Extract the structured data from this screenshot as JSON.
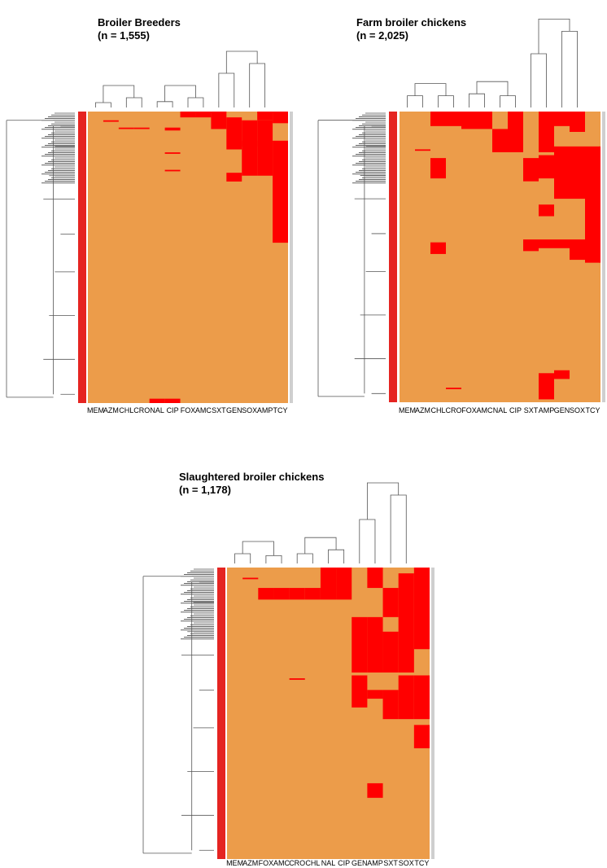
{
  "colors": {
    "susceptible": "#ec9c4a",
    "resistant": "#ff0000",
    "side_bar": "#e52421",
    "dendrogram": "#555555"
  },
  "chart_data": [
    {
      "type": "heatmap",
      "title": "Broiler Breeders",
      "subtitle": "(n = 1,555)",
      "columns": [
        "MEM",
        "AZM",
        "CHL",
        "CRO",
        "NAL",
        "CIP",
        "FOX",
        "AMC",
        "SXT",
        "GEN",
        "SOX",
        "AMP",
        "TCY"
      ],
      "value_encoding": {
        "0": "susceptible",
        "1": "resistant"
      },
      "resistant_blocks": [
        {
          "col": 12,
          "rows": [
            0.0,
            0.04
          ]
        },
        {
          "col": 12,
          "rows": [
            0.1,
            0.45
          ]
        },
        {
          "col": 11,
          "rows": [
            0.0,
            0.03
          ]
        },
        {
          "col": 11,
          "rows": [
            0.03,
            0.22
          ]
        },
        {
          "col": 10,
          "rows": [
            0.03,
            0.22
          ]
        },
        {
          "col": 10,
          "rows": [
            0.1,
            0.12
          ]
        },
        {
          "col": 9,
          "rows": [
            0.02,
            0.13
          ]
        },
        {
          "col": 9,
          "rows": [
            0.21,
            0.24
          ]
        },
        {
          "col": 8,
          "rows": [
            0.0,
            0.06
          ]
        },
        {
          "col": 7,
          "rows": [
            0.0,
            0.02
          ]
        },
        {
          "col": 6,
          "rows": [
            0.0,
            0.02
          ]
        },
        {
          "col": 5,
          "rows": [
            0.055,
            0.065
          ]
        },
        {
          "col": 5,
          "rows": [
            0.14,
            0.145
          ]
        },
        {
          "col": 5,
          "rows": [
            0.2,
            0.205
          ]
        },
        {
          "col": 3,
          "rows": [
            0.055,
            0.06
          ]
        },
        {
          "col": 2,
          "rows": [
            0.055,
            0.06
          ]
        },
        {
          "col": 1,
          "rows": [
            0.03,
            0.035
          ]
        },
        {
          "col": 4,
          "rows": [
            0.985,
            1.0
          ]
        },
        {
          "col": 5,
          "rows": [
            0.985,
            1.0
          ]
        }
      ]
    },
    {
      "type": "heatmap",
      "title": "Farm broiler chickens",
      "subtitle": "(n = 2,025)",
      "columns": [
        "MEM",
        "AZM",
        "CHL",
        "CRO",
        "FOX",
        "AMC",
        "NAL",
        "CIP",
        "SXT",
        "AMP",
        "GEN",
        "SOX",
        "TCY"
      ],
      "value_encoding": {
        "0": "susceptible",
        "1": "resistant"
      },
      "resistant_blocks": [
        {
          "col": 12,
          "rows": [
            0.12,
            0.52
          ]
        },
        {
          "col": 11,
          "rows": [
            0.0,
            0.07
          ]
        },
        {
          "col": 11,
          "rows": [
            0.12,
            0.3
          ]
        },
        {
          "col": 11,
          "rows": [
            0.44,
            0.51
          ]
        },
        {
          "col": 10,
          "rows": [
            0.0,
            0.05
          ]
        },
        {
          "col": 10,
          "rows": [
            0.12,
            0.3
          ]
        },
        {
          "col": 10,
          "rows": [
            0.44,
            0.47
          ]
        },
        {
          "col": 10,
          "rows": [
            0.89,
            0.92
          ]
        },
        {
          "col": 9,
          "rows": [
            0.0,
            0.14
          ]
        },
        {
          "col": 9,
          "rows": [
            0.15,
            0.23
          ]
        },
        {
          "col": 9,
          "rows": [
            0.32,
            0.36
          ]
        },
        {
          "col": 9,
          "rows": [
            0.44,
            0.47
          ]
        },
        {
          "col": 9,
          "rows": [
            0.9,
            0.99
          ]
        },
        {
          "col": 8,
          "rows": [
            0.16,
            0.24
          ]
        },
        {
          "col": 8,
          "rows": [
            0.44,
            0.48
          ]
        },
        {
          "col": 7,
          "rows": [
            0.0,
            0.14
          ]
        },
        {
          "col": 6,
          "rows": [
            0.06,
            0.14
          ]
        },
        {
          "col": 5,
          "rows": [
            0.0,
            0.06
          ]
        },
        {
          "col": 4,
          "rows": [
            0.0,
            0.06
          ]
        },
        {
          "col": 3,
          "rows": [
            0.0,
            0.05
          ]
        },
        {
          "col": 2,
          "rows": [
            0.0,
            0.05
          ]
        },
        {
          "col": 2,
          "rows": [
            0.16,
            0.23
          ]
        },
        {
          "col": 2,
          "rows": [
            0.45,
            0.49
          ]
        },
        {
          "col": 1,
          "rows": [
            0.13,
            0.135
          ]
        },
        {
          "col": 3,
          "rows": [
            0.95,
            0.955
          ]
        }
      ]
    },
    {
      "type": "heatmap",
      "title": "Slaughtered broiler chickens",
      "subtitle": "(n = 1,178)",
      "columns": [
        "MEM",
        "AZM",
        "FOX",
        "AMC",
        "CRO",
        "CHL",
        "NAL",
        "CIP",
        "GEN",
        "AMP",
        "SXT",
        "SOX",
        "TCY"
      ],
      "value_encoding": {
        "0": "susceptible",
        "1": "resistant"
      },
      "resistant_blocks": [
        {
          "col": 12,
          "rows": [
            0.0,
            0.28
          ]
        },
        {
          "col": 12,
          "rows": [
            0.37,
            0.52
          ]
        },
        {
          "col": 12,
          "rows": [
            0.54,
            0.62
          ]
        },
        {
          "col": 11,
          "rows": [
            0.02,
            0.36
          ]
        },
        {
          "col": 11,
          "rows": [
            0.37,
            0.52
          ]
        },
        {
          "col": 10,
          "rows": [
            0.07,
            0.17
          ]
        },
        {
          "col": 10,
          "rows": [
            0.22,
            0.36
          ]
        },
        {
          "col": 10,
          "rows": [
            0.42,
            0.52
          ]
        },
        {
          "col": 9,
          "rows": [
            0.0,
            0.07
          ]
        },
        {
          "col": 9,
          "rows": [
            0.17,
            0.36
          ]
        },
        {
          "col": 9,
          "rows": [
            0.42,
            0.45
          ]
        },
        {
          "col": 9,
          "rows": [
            0.74,
            0.79
          ]
        },
        {
          "col": 8,
          "rows": [
            0.17,
            0.36
          ]
        },
        {
          "col": 8,
          "rows": [
            0.37,
            0.48
          ]
        },
        {
          "col": 7,
          "rows": [
            0.0,
            0.11
          ]
        },
        {
          "col": 6,
          "rows": [
            0.0,
            0.11
          ]
        },
        {
          "col": 5,
          "rows": [
            0.07,
            0.11
          ]
        },
        {
          "col": 4,
          "rows": [
            0.07,
            0.11
          ]
        },
        {
          "col": 3,
          "rows": [
            0.07,
            0.11
          ]
        },
        {
          "col": 2,
          "rows": [
            0.07,
            0.11
          ]
        },
        {
          "col": 1,
          "rows": [
            0.035,
            0.04
          ]
        },
        {
          "col": 4,
          "rows": [
            0.38,
            0.385
          ]
        }
      ]
    }
  ]
}
